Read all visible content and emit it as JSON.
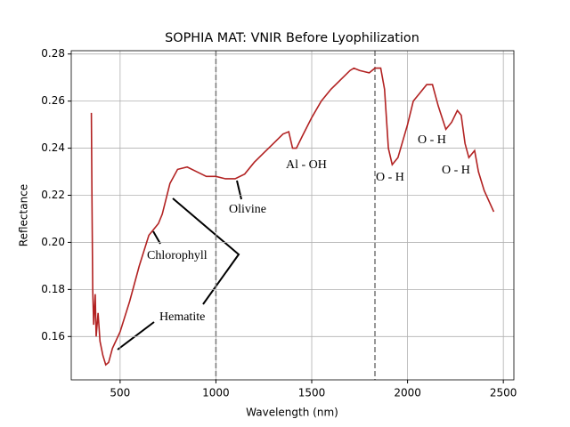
{
  "chart_data": {
    "type": "line",
    "title": "SOPHIA MAT: VNIR Before Lyophilization",
    "xlabel": "Wavelength (nm)",
    "ylabel": "Reflectance",
    "x": [
      350,
      353,
      357,
      362,
      370,
      375,
      385,
      395,
      410,
      425,
      440,
      460,
      500,
      550,
      600,
      650,
      700,
      720,
      760,
      800,
      850,
      900,
      950,
      1000,
      1050,
      1100,
      1150,
      1200,
      1250,
      1300,
      1350,
      1380,
      1400,
      1420,
      1450,
      1500,
      1550,
      1600,
      1650,
      1700,
      1720,
      1750,
      1800,
      1830,
      1860,
      1880,
      1900,
      1920,
      1950,
      2000,
      2030,
      2060,
      2100,
      2130,
      2160,
      2200,
      2230,
      2260,
      2280,
      2300,
      2320,
      2350,
      2370,
      2400,
      2450
    ],
    "series": [
      {
        "name": "Reflectance",
        "color": "#b22222",
        "values": [
          0.255,
          0.22,
          0.18,
          0.165,
          0.178,
          0.16,
          0.17,
          0.158,
          0.152,
          0.148,
          0.149,
          0.155,
          0.162,
          0.175,
          0.19,
          0.203,
          0.208,
          0.212,
          0.225,
          0.231,
          0.232,
          0.23,
          0.228,
          0.228,
          0.227,
          0.227,
          0.229,
          0.234,
          0.238,
          0.242,
          0.246,
          0.247,
          0.24,
          0.24,
          0.245,
          0.253,
          0.26,
          0.265,
          0.269,
          0.273,
          0.274,
          0.273,
          0.272,
          0.274,
          0.274,
          0.265,
          0.24,
          0.233,
          0.236,
          0.25,
          0.26,
          0.263,
          0.267,
          0.267,
          0.258,
          0.248,
          0.251,
          0.256,
          0.254,
          0.242,
          0.236,
          0.239,
          0.23,
          0.222,
          0.213
        ]
      }
    ],
    "xlim": [
      245,
      2555
    ],
    "ylim": [
      0.1416,
      0.2814
    ],
    "xticks": [
      500,
      1000,
      1500,
      2000,
      2500
    ],
    "yticks": [
      0.16,
      0.18,
      {
        "value": 0.2,
        "label": "0.20"
      },
      0.22,
      0.24,
      0.26,
      0.28
    ],
    "grid": true,
    "vlines": [
      1000,
      1830
    ],
    "annotations": [
      "Chlorophyll",
      "Hematite",
      "Olivine",
      "Al - OH",
      "O - H",
      "O - H",
      "O - H"
    ]
  }
}
